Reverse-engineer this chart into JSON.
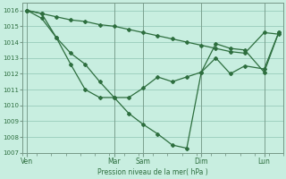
{
  "bg_color": "#c8eee0",
  "grid_color": "#99ccbb",
  "line_color": "#2d6e3e",
  "xlabel_text": "Pression niveau de la mer( hPa )",
  "ylim": [
    1007,
    1016.5
  ],
  "yticks": [
    1007,
    1008,
    1009,
    1010,
    1011,
    1012,
    1013,
    1014,
    1015,
    1016
  ],
  "xlim": [
    0,
    108
  ],
  "day_labels": [
    "Ven",
    "Mar",
    "Sam",
    "Dim",
    "Lun"
  ],
  "day_positions": [
    2,
    38,
    50,
    74,
    100
  ],
  "vline_positions": [
    2,
    38,
    50,
    74,
    100
  ],
  "line_upper": {
    "x": [
      2,
      8,
      14,
      20,
      26,
      32,
      38,
      44,
      50,
      56,
      62,
      68,
      74,
      80,
      86,
      92,
      100,
      106
    ],
    "y": [
      1016.0,
      1015.8,
      1015.6,
      1015.4,
      1015.3,
      1015.1,
      1015.0,
      1014.8,
      1014.6,
      1014.4,
      1014.2,
      1014.0,
      1013.8,
      1013.6,
      1013.4,
      1013.3,
      1014.6,
      1014.5
    ]
  },
  "line_mid": {
    "x": [
      2,
      8,
      14,
      20,
      26,
      32,
      38,
      44,
      50,
      56,
      62,
      68,
      74,
      80,
      86,
      92,
      100,
      106
    ],
    "y": [
      1016.0,
      1015.5,
      1014.3,
      1013.3,
      1012.6,
      1011.5,
      1010.5,
      1010.5,
      1011.1,
      1011.8,
      1011.5,
      1011.8,
      1012.1,
      1013.9,
      1013.6,
      1013.5,
      1012.1,
      1014.6
    ]
  },
  "line_low": {
    "x": [
      2,
      8,
      14,
      20,
      26,
      32,
      38,
      44,
      50,
      56,
      62,
      68,
      74,
      80,
      86,
      92,
      100,
      106
    ],
    "y": [
      1016.0,
      1015.8,
      1014.3,
      1012.6,
      1011.0,
      1010.5,
      1010.5,
      1009.5,
      1008.8,
      1008.2,
      1007.5,
      1007.3,
      1012.1,
      1013.0,
      1012.0,
      1012.5,
      1012.3,
      1014.6
    ]
  }
}
